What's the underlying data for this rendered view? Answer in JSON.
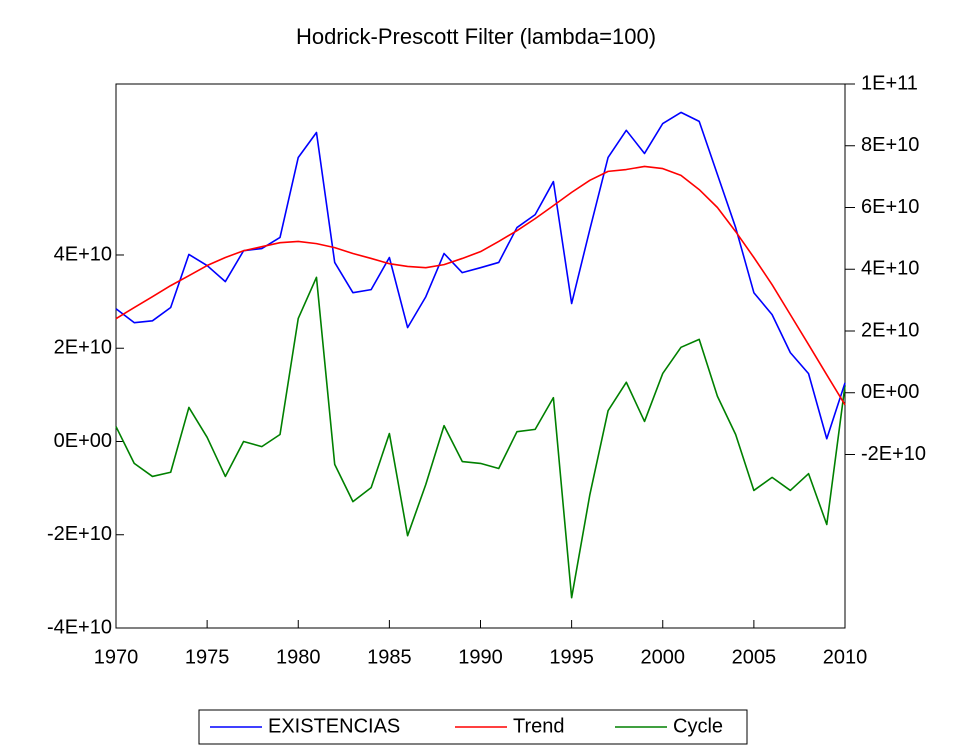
{
  "chart_data": {
    "type": "line",
    "title": "Hodrick-Prescott Filter (lambda=100)",
    "x": [
      1970,
      1971,
      1972,
      1973,
      1974,
      1975,
      1976,
      1977,
      1978,
      1979,
      1980,
      1981,
      1982,
      1983,
      1984,
      1985,
      1986,
      1987,
      1988,
      1989,
      1990,
      1991,
      1992,
      1993,
      1994,
      1995,
      1996,
      1997,
      1998,
      1999,
      2000,
      2001,
      2002,
      2003,
      2004,
      2005,
      2006,
      2007,
      2008,
      2009,
      2010
    ],
    "xlim": [
      1970,
      2010
    ],
    "xticks": [
      1970,
      1975,
      1980,
      1985,
      1990,
      1995,
      2000,
      2005,
      2010
    ],
    "ylim": [
      -40000000000.0,
      76670000000.0
    ],
    "yticks": [
      {
        "value": -40000000000.0,
        "label": "-4E+10"
      },
      {
        "value": -20000000000.0,
        "label": "-2E+10"
      },
      {
        "value": 0,
        "label": "0E+00"
      },
      {
        "value": 20000000000.0,
        "label": "2E+10"
      },
      {
        "value": 40000000000.0,
        "label": "4E+10"
      }
    ],
    "y2lim": [
      -76200000000.0,
      100000000000.0
    ],
    "y2ticks": [
      {
        "value": -20000000000.0,
        "label": "-2E+10"
      },
      {
        "value": 0,
        "label": "0E+00"
      },
      {
        "value": 20000000000.0,
        "label": "2E+10"
      },
      {
        "value": 40000000000.0,
        "label": "4E+10"
      },
      {
        "value": 60000000000.0,
        "label": "6E+10"
      },
      {
        "value": 80000000000.0,
        "label": "8E+10"
      },
      {
        "value": 100000000000.0,
        "label": "1E+11"
      }
    ],
    "series": [
      {
        "name": "EXISTENCIAS",
        "color": "#0000ff",
        "axis": "y2",
        "values": [
          27200000000.0,
          22700000000.0,
          23300000000.0,
          27600000000.0,
          44800000000.0,
          41200000000.0,
          36000000000.0,
          46000000000.0,
          46700000000.0,
          50300000000.0,
          76200000000.0,
          84300000000.0,
          42200000000.0,
          32400000000.0,
          33400000000.0,
          43800000000.0,
          21100000000.0,
          31100000000.0,
          45100000000.0,
          38900000000.0,
          40500000000.0,
          42200000000.0,
          53500000000.0,
          57700000000.0,
          68400000000.0,
          28900000000.0,
          52900000000.0,
          76200000000.0,
          85000000000.0,
          77500000000.0,
          87200000000.0,
          90800000000.0,
          87900000000.0,
          70700000000.0,
          53500000000.0,
          32400000000.0,
          25300000000.0,
          13000000000.0,
          6200000000.0,
          -14900000000.0,
          3200000000.0
        ]
      },
      {
        "name": "Trend",
        "color": "#ff0000",
        "axis": "y2",
        "values": [
          24000000000.0,
          27600000000.0,
          31100000000.0,
          34700000000.0,
          37900000000.0,
          41200000000.0,
          43800000000.0,
          46000000000.0,
          47300000000.0,
          48600000000.0,
          49000000000.0,
          48300000000.0,
          47000000000.0,
          45100000000.0,
          43500000000.0,
          41800000000.0,
          40900000000.0,
          40500000000.0,
          41500000000.0,
          43500000000.0,
          45700000000.0,
          49000000000.0,
          52500000000.0,
          56400000000.0,
          60600000000.0,
          64900000000.0,
          68800000000.0,
          71700000000.0,
          72300000000.0,
          73300000000.0,
          72600000000.0,
          70400000000.0,
          65800000000.0,
          60000000000.0,
          52200000000.0,
          43800000000.0,
          35000000000.0,
          25300000000.0,
          15600000000.0,
          5800000000.0,
          -3900000000.0
        ]
      },
      {
        "name": "Cycle",
        "color": "#008000",
        "values": [
          3200000000.0,
          -4700000000.0,
          -7500000000.0,
          -6600000000.0,
          7300000000.0,
          900000000.0,
          -7500000000.0,
          0,
          -1100000000.0,
          1500000000.0,
          26400000000.0,
          35200000000.0,
          -4900000000.0,
          -12900000000.0,
          -9900000000.0,
          1700000000.0,
          -20200000000.0,
          -9200000000.0,
          3400000000.0,
          -4300000000.0,
          -4700000000.0,
          -5800000000.0,
          2100000000.0,
          2600000000.0,
          9400000000.0,
          -33500000000.0,
          -11400000000.0,
          6600000000.0,
          12700000000.0,
          4300000000.0,
          14600000000.0,
          20200000000.0,
          21900000000.0,
          9700000000.0,
          1500000000.0,
          -10500000000.0,
          -7700000000.0,
          -10500000000.0,
          -6900000000.0,
          -17800000000.0,
          12000000000.0
        ]
      }
    ]
  }
}
